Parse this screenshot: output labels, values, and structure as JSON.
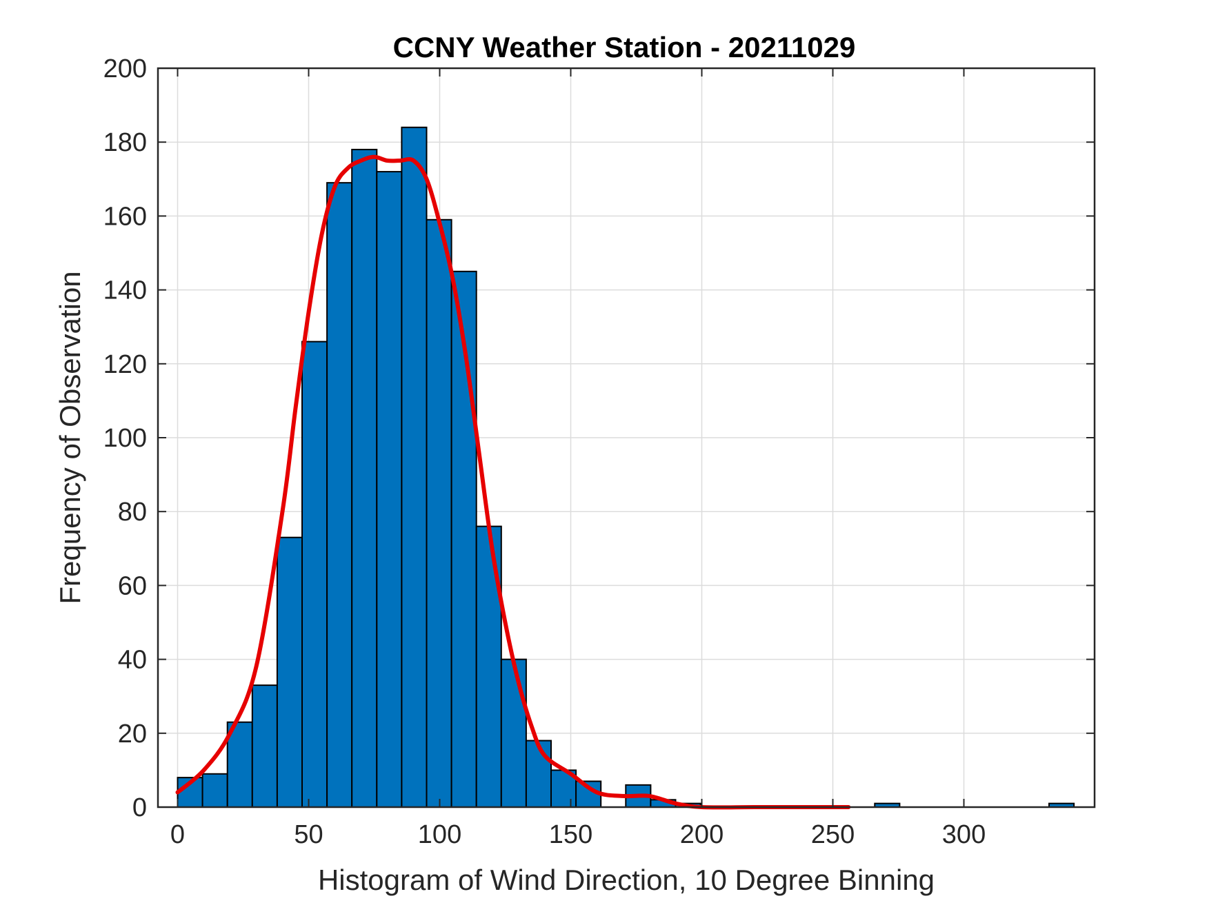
{
  "chart_data": {
    "type": "bar",
    "title": "CCNY Weather Station - 20211029",
    "xlabel": "Histogram of Wind Direction, 10 Degree Binning",
    "ylabel": "Frequency of Observation",
    "xlim": [
      -15,
      350
    ],
    "ylim": [
      0,
      200
    ],
    "xticks": [
      0,
      50,
      100,
      150,
      200,
      250,
      300
    ],
    "yticks": [
      0,
      20,
      40,
      60,
      80,
      100,
      120,
      140,
      160,
      180,
      200
    ],
    "grid": true,
    "bin_width": 9.5,
    "bin_start": 0,
    "bins": [
      {
        "x": 0,
        "value": 8
      },
      {
        "x": 9.5,
        "value": 9
      },
      {
        "x": 19,
        "value": 23
      },
      {
        "x": 28.5,
        "value": 33
      },
      {
        "x": 38,
        "value": 73
      },
      {
        "x": 47.5,
        "value": 126
      },
      {
        "x": 57,
        "value": 169
      },
      {
        "x": 66.5,
        "value": 178
      },
      {
        "x": 76,
        "value": 172
      },
      {
        "x": 85.5,
        "value": 184
      },
      {
        "x": 95,
        "value": 159
      },
      {
        "x": 104.5,
        "value": 145
      },
      {
        "x": 114,
        "value": 76
      },
      {
        "x": 123.5,
        "value": 40
      },
      {
        "x": 133,
        "value": 18
      },
      {
        "x": 142.5,
        "value": 10
      },
      {
        "x": 152,
        "value": 7
      },
      {
        "x": 161.5,
        "value": 0
      },
      {
        "x": 171,
        "value": 6
      },
      {
        "x": 180.5,
        "value": 2
      },
      {
        "x": 190,
        "value": 1
      },
      {
        "x": 199.5,
        "value": 0
      },
      {
        "x": 266,
        "value": 1
      },
      {
        "x": 332.5,
        "value": 1
      }
    ],
    "fit_curve": {
      "x": [
        0,
        10,
        20,
        30,
        40,
        45,
        50,
        55,
        60,
        65,
        70,
        75,
        80,
        85,
        90,
        95,
        100,
        105,
        110,
        115,
        120,
        125,
        130,
        135,
        140,
        150,
        160,
        170,
        180,
        190,
        200,
        220,
        240,
        256
      ],
      "y": [
        4,
        10,
        20,
        38,
        80,
        108,
        134,
        155,
        168,
        173,
        175,
        176,
        175,
        175,
        175,
        170,
        158,
        143,
        122,
        96,
        70,
        50,
        34,
        22,
        14,
        9,
        4,
        3,
        3,
        1,
        0,
        0,
        0,
        0
      ]
    },
    "colors": {
      "bar_fill": "#0072BD",
      "bar_edge": "#000000",
      "curve": "#E60000",
      "grid": "#dcdcdc",
      "axes": "#262626"
    }
  }
}
